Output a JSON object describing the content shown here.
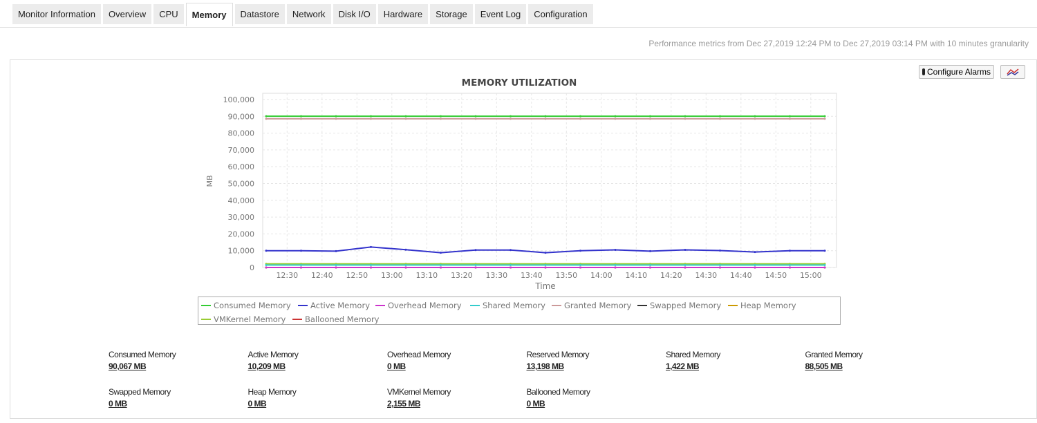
{
  "tabs": [
    "Monitor Information",
    "Overview",
    "CPU",
    "Memory",
    "Datastore",
    "Network",
    "Disk I/O",
    "Hardware",
    "Storage",
    "Event Log",
    "Configuration"
  ],
  "active_tab": "Memory",
  "info": "Performance metrics from Dec 27,2019 12:24 PM to Dec 27,2019 03:14 PM with 10 minutes granularity",
  "buttons": {
    "configure_alarms": "Configure Alarms",
    "chart_type_icon": "line-chart-icon"
  },
  "chart_data": {
    "type": "line",
    "title": "MEMORY UTILIZATION",
    "xlabel": "Time",
    "ylabel": "MB",
    "ylim": [
      0,
      100000
    ],
    "yticks": [
      "0",
      "10,000",
      "20,000",
      "30,000",
      "40,000",
      "50,000",
      "60,000",
      "70,000",
      "80,000",
      "90,000",
      "100,000"
    ],
    "xticks": [
      "12:30",
      "12:40",
      "12:50",
      "13:00",
      "13:10",
      "13:20",
      "13:30",
      "13:40",
      "13:50",
      "14:00",
      "14:10",
      "14:20",
      "14:30",
      "14:40",
      "14:50",
      "15:00"
    ],
    "x": [
      "12:24",
      "12:34",
      "12:44",
      "12:54",
      "13:04",
      "13:14",
      "13:24",
      "13:34",
      "13:44",
      "13:54",
      "14:04",
      "14:14",
      "14:24",
      "14:34",
      "14:44",
      "14:54",
      "15:04"
    ],
    "grid": true,
    "legend": "bottom",
    "series": [
      {
        "name": "Consumed Memory",
        "color": "#33cc33",
        "values": [
          90067,
          90067,
          90067,
          90067,
          90067,
          90067,
          90067,
          90067,
          90067,
          90067,
          90067,
          90067,
          90067,
          90067,
          90067,
          90067,
          90067
        ]
      },
      {
        "name": "Active Memory",
        "color": "#3333cc",
        "values": [
          10000,
          10000,
          9700,
          12200,
          10600,
          8800,
          10400,
          10400,
          8800,
          10000,
          10500,
          9700,
          10500,
          10100,
          9200,
          10000,
          10000
        ]
      },
      {
        "name": "Overhead Memory",
        "color": "#cc33cc",
        "values": [
          0,
          0,
          0,
          0,
          0,
          0,
          0,
          0,
          0,
          0,
          0,
          0,
          0,
          0,
          0,
          0,
          0
        ]
      },
      {
        "name": "Shared Memory",
        "color": "#33cccc",
        "values": [
          1422,
          1422,
          1422,
          1422,
          1422,
          1422,
          1422,
          1422,
          1422,
          1422,
          1422,
          1422,
          1422,
          1422,
          1422,
          1422,
          1422
        ]
      },
      {
        "name": "Granted Memory",
        "color": "#cc9999",
        "values": [
          88505,
          88505,
          88505,
          88505,
          88505,
          88505,
          88505,
          88505,
          88505,
          88505,
          88505,
          88505,
          88505,
          88505,
          88505,
          88505,
          88505
        ]
      },
      {
        "name": "Swapped Memory",
        "color": "#333333",
        "values": [
          0,
          0,
          0,
          0,
          0,
          0,
          0,
          0,
          0,
          0,
          0,
          0,
          0,
          0,
          0,
          0,
          0
        ]
      },
      {
        "name": "Heap Memory",
        "color": "#cc9900",
        "values": [
          0,
          0,
          0,
          0,
          0,
          0,
          0,
          0,
          0,
          0,
          0,
          0,
          0,
          0,
          0,
          0,
          0
        ]
      },
      {
        "name": "VMKernel Memory",
        "color": "#99cc33",
        "values": [
          2155,
          2155,
          2155,
          2155,
          2155,
          2155,
          2155,
          2155,
          2155,
          2155,
          2155,
          2155,
          2155,
          2155,
          2155,
          2155,
          2155
        ]
      },
      {
        "name": "Ballooned Memory",
        "color": "#cc3333",
        "values": [
          0,
          0,
          0,
          0,
          0,
          0,
          0,
          0,
          0,
          0,
          0,
          0,
          0,
          0,
          0,
          0,
          0
        ]
      }
    ]
  },
  "stats": [
    {
      "label": "Consumed Memory",
      "value": "90,067 MB"
    },
    {
      "label": "Active Memory",
      "value": "10,209 MB"
    },
    {
      "label": "Overhead Memory",
      "value": "0 MB"
    },
    {
      "label": "Reserved Memory",
      "value": "13,198 MB"
    },
    {
      "label": "Shared Memory",
      "value": "1,422 MB"
    },
    {
      "label": "Granted Memory",
      "value": "88,505 MB"
    },
    {
      "label": "Swapped Memory",
      "value": "0 MB"
    },
    {
      "label": "Heap Memory",
      "value": "0 MB"
    },
    {
      "label": "VMKernel Memory",
      "value": "2,155 MB"
    },
    {
      "label": "Ballooned Memory",
      "value": "0 MB"
    }
  ]
}
